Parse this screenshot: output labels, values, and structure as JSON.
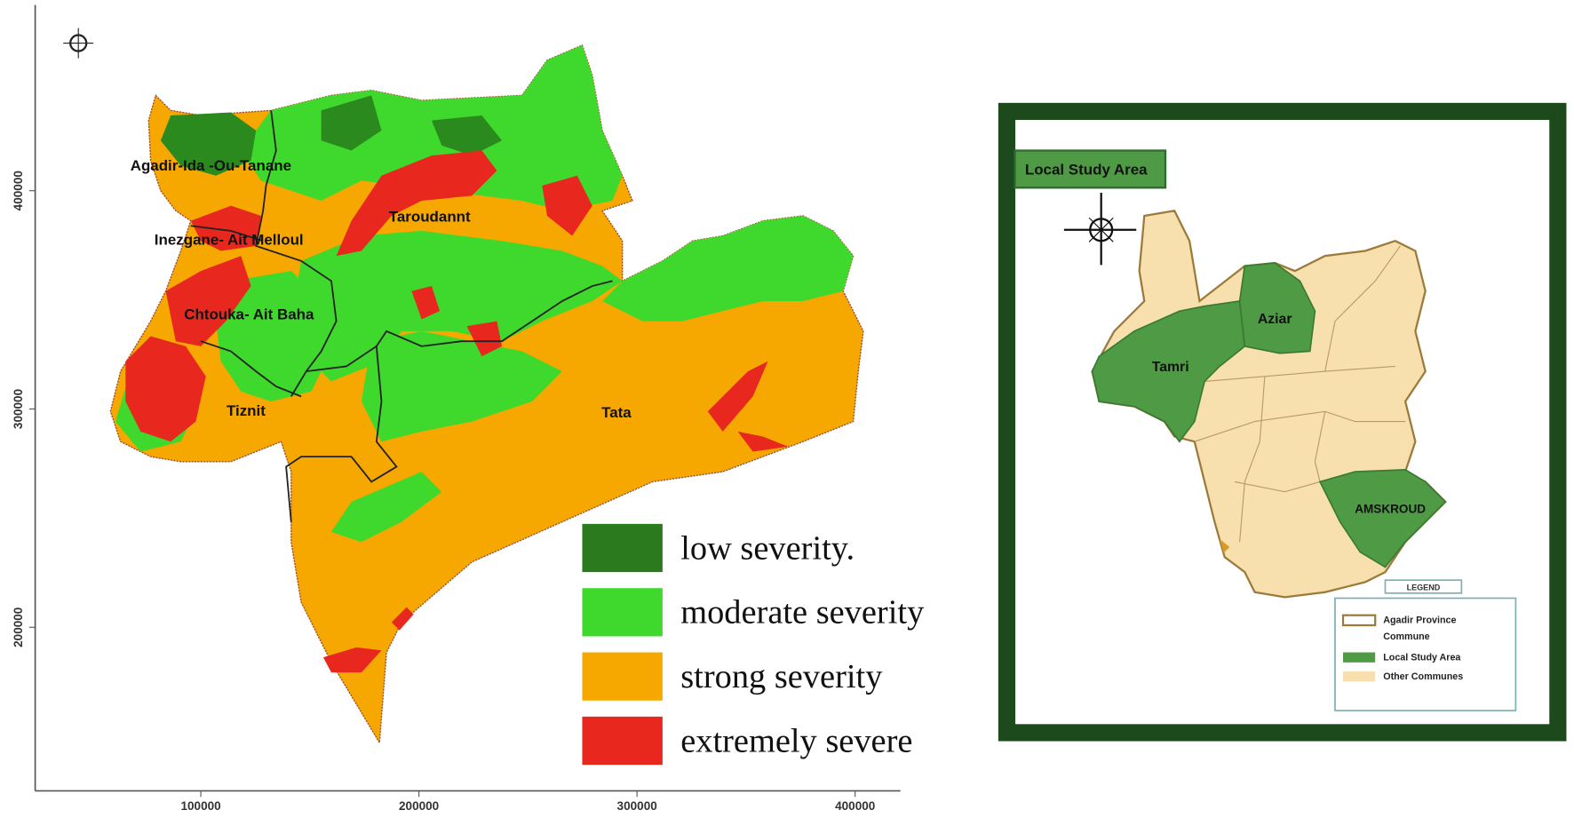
{
  "severity_map": {
    "x_ticks": [
      100000,
      200000,
      300000,
      400000
    ],
    "y_ticks": [
      400000,
      300000,
      200000
    ],
    "regions": [
      "Agadir-Ida -Ou-Tanane",
      "Inezgane- Ait Melloul",
      "Taroudannt",
      "Chtouka- Ait Baha",
      "Tiznit",
      "Tata"
    ],
    "legend": [
      {
        "label": "low severity.",
        "color": "#2b7a1e"
      },
      {
        "label": "moderate severity",
        "color": "#3fd82c"
      },
      {
        "label": "strong severity",
        "color": "#f6a800"
      },
      {
        "label": "extremely severe",
        "color": "#e8281e"
      }
    ]
  },
  "inset": {
    "title": "Local Study Area",
    "communes": [
      "Tamri",
      "Aziar",
      "AMSKROUD"
    ],
    "legend": {
      "title": "LEGEND",
      "entries": [
        {
          "lines": [
            "Agadir Province",
            "Commune"
          ]
        },
        {
          "lines": [
            "Local Study Area"
          ]
        },
        {
          "lines": [
            "Other Communes"
          ]
        }
      ]
    }
  }
}
